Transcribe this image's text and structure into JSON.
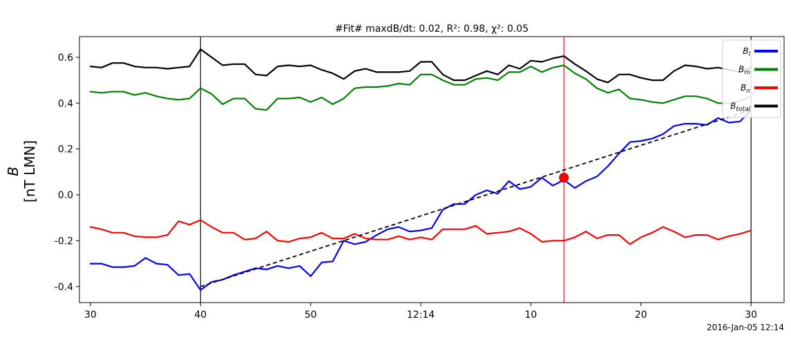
{
  "chart_data": {
    "type": "line",
    "title": "#Fit# maxdB/dt: 0.02, R²: 0.98, χ²: 0.05",
    "ylabel": [
      "B",
      "[nT LMN]"
    ],
    "xlabel": "",
    "date_label": "2016-Jan-05 12:14",
    "x_ticks": [
      {
        "t": 1,
        "label": "30"
      },
      {
        "t": 11,
        "label": "40"
      },
      {
        "t": 21,
        "label": "50"
      },
      {
        "t": 31,
        "label": "12:14"
      },
      {
        "t": 41,
        "label": "10"
      },
      {
        "t": 51,
        "label": "20"
      },
      {
        "t": 61,
        "label": "30"
      }
    ],
    "xlim": [
      0,
      64
    ],
    "y_ticks": [
      -0.4,
      -0.2,
      0.0,
      0.2,
      0.4,
      0.6
    ],
    "ylim": [
      -0.47,
      0.69
    ],
    "grid": false,
    "legend_position": "top-right",
    "vlines": [
      {
        "t": 11,
        "color": "#000000"
      },
      {
        "t": 44,
        "color": "#e41a1c"
      },
      {
        "t": 61,
        "color": "#000000"
      }
    ],
    "fit_line": {
      "x": [
        11,
        61
      ],
      "y": [
        -0.4,
        0.37
      ],
      "color": "#000000"
    },
    "fit_marker": {
      "x": 44,
      "y": 0.075,
      "color": "#ff0000"
    },
    "series": [
      {
        "name": "B_l",
        "color": "#0000ff",
        "x": [
          1,
          2,
          3,
          4,
          5,
          6,
          7,
          8,
          9,
          10,
          11,
          12,
          13,
          14,
          15,
          16,
          17,
          18,
          19,
          20,
          21,
          22,
          23,
          24,
          25,
          26,
          27,
          28,
          29,
          30,
          31,
          32,
          33,
          34,
          35,
          36,
          37,
          38,
          39,
          40,
          41,
          42,
          43,
          44,
          45,
          46,
          47,
          48,
          49,
          50,
          51,
          52,
          53,
          54,
          55,
          56,
          57,
          58,
          59,
          60,
          61
        ],
        "y": [
          -0.3,
          -0.3,
          -0.315,
          -0.315,
          -0.31,
          -0.275,
          -0.3,
          -0.305,
          -0.35,
          -0.345,
          -0.415,
          -0.38,
          -0.37,
          -0.35,
          -0.335,
          -0.32,
          -0.325,
          -0.31,
          -0.32,
          -0.31,
          -0.355,
          -0.295,
          -0.29,
          -0.2,
          -0.215,
          -0.205,
          -0.175,
          -0.15,
          -0.14,
          -0.16,
          -0.155,
          -0.145,
          -0.065,
          -0.04,
          -0.04,
          0.0,
          0.02,
          0.005,
          0.06,
          0.025,
          0.035,
          0.075,
          0.04,
          0.065,
          0.03,
          0.06,
          0.08,
          0.125,
          0.18,
          0.23,
          0.235,
          0.245,
          0.265,
          0.3,
          0.31,
          0.31,
          0.305,
          0.335,
          0.315,
          0.32,
          0.37
        ]
      },
      {
        "name": "B_m",
        "color": "#008000",
        "x": [
          1,
          2,
          3,
          4,
          5,
          6,
          7,
          8,
          9,
          10,
          11,
          12,
          13,
          14,
          15,
          16,
          17,
          18,
          19,
          20,
          21,
          22,
          23,
          24,
          25,
          26,
          27,
          28,
          29,
          30,
          31,
          32,
          33,
          34,
          35,
          36,
          37,
          38,
          39,
          40,
          41,
          42,
          43,
          44,
          45,
          46,
          47,
          48,
          49,
          50,
          51,
          52,
          53,
          54,
          55,
          56,
          57,
          58,
          59,
          60,
          61
        ],
        "y": [
          0.45,
          0.445,
          0.45,
          0.45,
          0.435,
          0.445,
          0.43,
          0.42,
          0.415,
          0.42,
          0.465,
          0.44,
          0.395,
          0.42,
          0.42,
          0.375,
          0.37,
          0.42,
          0.42,
          0.425,
          0.405,
          0.425,
          0.395,
          0.42,
          0.465,
          0.47,
          0.47,
          0.475,
          0.485,
          0.48,
          0.525,
          0.525,
          0.5,
          0.48,
          0.48,
          0.505,
          0.51,
          0.5,
          0.535,
          0.535,
          0.56,
          0.535,
          0.555,
          0.565,
          0.53,
          0.505,
          0.465,
          0.445,
          0.46,
          0.42,
          0.415,
          0.405,
          0.4,
          0.415,
          0.43,
          0.43,
          0.42,
          0.4,
          0.4,
          0.41,
          0.43
        ]
      },
      {
        "name": "B_n",
        "color": "#ff0000",
        "x": [
          1,
          2,
          3,
          4,
          5,
          6,
          7,
          8,
          9,
          10,
          11,
          12,
          13,
          14,
          15,
          16,
          17,
          18,
          19,
          20,
          21,
          22,
          23,
          24,
          25,
          26,
          27,
          28,
          29,
          30,
          31,
          32,
          33,
          34,
          35,
          36,
          37,
          38,
          39,
          40,
          41,
          42,
          43,
          44,
          45,
          46,
          47,
          48,
          49,
          50,
          51,
          52,
          53,
          54,
          55,
          56,
          57,
          58,
          59,
          60,
          61
        ],
        "y": [
          -0.14,
          -0.15,
          -0.165,
          -0.165,
          -0.18,
          -0.185,
          -0.185,
          -0.175,
          -0.115,
          -0.13,
          -0.11,
          -0.14,
          -0.165,
          -0.165,
          -0.195,
          -0.19,
          -0.16,
          -0.2,
          -0.205,
          -0.19,
          -0.185,
          -0.165,
          -0.19,
          -0.19,
          -0.17,
          -0.19,
          -0.195,
          -0.195,
          -0.18,
          -0.195,
          -0.185,
          -0.195,
          -0.15,
          -0.15,
          -0.15,
          -0.135,
          -0.17,
          -0.165,
          -0.16,
          -0.145,
          -0.17,
          -0.205,
          -0.2,
          -0.2,
          -0.185,
          -0.16,
          -0.19,
          -0.175,
          -0.175,
          -0.215,
          -0.185,
          -0.165,
          -0.14,
          -0.16,
          -0.185,
          -0.175,
          -0.175,
          -0.195,
          -0.18,
          -0.17,
          -0.155
        ]
      },
      {
        "name": "B_total",
        "color": "#000000",
        "x": [
          1,
          2,
          3,
          4,
          5,
          6,
          7,
          8,
          9,
          10,
          11,
          12,
          13,
          14,
          15,
          16,
          17,
          18,
          19,
          20,
          21,
          22,
          23,
          24,
          25,
          26,
          27,
          28,
          29,
          30,
          31,
          32,
          33,
          34,
          35,
          36,
          37,
          38,
          39,
          40,
          41,
          42,
          43,
          44,
          45,
          46,
          47,
          48,
          49,
          50,
          51,
          52,
          53,
          54,
          55,
          56,
          57,
          58,
          59,
          60,
          61
        ],
        "y": [
          0.56,
          0.555,
          0.575,
          0.575,
          0.56,
          0.555,
          0.555,
          0.55,
          0.555,
          0.56,
          0.635,
          0.6,
          0.565,
          0.57,
          0.57,
          0.525,
          0.52,
          0.56,
          0.565,
          0.56,
          0.565,
          0.545,
          0.53,
          0.505,
          0.54,
          0.55,
          0.535,
          0.535,
          0.535,
          0.54,
          0.58,
          0.58,
          0.525,
          0.5,
          0.5,
          0.52,
          0.54,
          0.525,
          0.565,
          0.55,
          0.585,
          0.58,
          0.595,
          0.605,
          0.57,
          0.54,
          0.505,
          0.49,
          0.525,
          0.525,
          0.51,
          0.5,
          0.5,
          0.54,
          0.565,
          0.56,
          0.55,
          0.555,
          0.545,
          0.535,
          0.555
        ]
      }
    ],
    "legend": [
      {
        "label": "B_l",
        "color": "#0000ff"
      },
      {
        "label": "B_m",
        "color": "#008000"
      },
      {
        "label": "B_n",
        "color": "#ff0000"
      },
      {
        "label": "B_total",
        "color": "#000000"
      }
    ]
  }
}
